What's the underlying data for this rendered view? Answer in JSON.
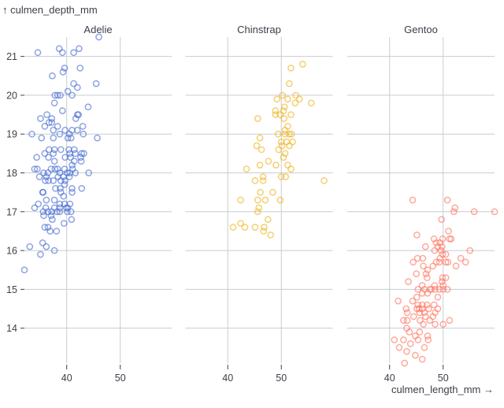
{
  "chart_data": {
    "type": "scatter",
    "xlabel": "culmen_length_mm →",
    "ylabel": "↑ culmen_depth_mm",
    "xlim": [
      32.1,
      59.6
    ],
    "ylim": [
      13.1,
      21.5
    ],
    "x_ticks": [
      "40",
      "50"
    ],
    "x_tick_values": [
      40,
      50
    ],
    "y_ticks": [
      "14",
      "15",
      "16",
      "17",
      "18",
      "19",
      "20",
      "21"
    ],
    "y_tick_values": [
      14,
      15,
      16,
      17,
      18,
      19,
      20,
      21
    ],
    "grid": true,
    "facet_by": "species",
    "facets": [
      {
        "name": "Adelie",
        "color": "#4269d0",
        "points": [
          [
            46.0,
            21.5
          ],
          [
            34.6,
            21.1
          ],
          [
            38.6,
            21.2
          ],
          [
            39.2,
            21.1
          ],
          [
            42.3,
            21.2
          ],
          [
            41.3,
            21.1
          ],
          [
            39.6,
            20.7
          ],
          [
            42.5,
            20.7
          ],
          [
            39.3,
            20.6
          ],
          [
            37.3,
            20.5
          ],
          [
            45.5,
            20.3
          ],
          [
            41.3,
            20.3
          ],
          [
            42.0,
            20.2
          ],
          [
            40.2,
            20.1
          ],
          [
            37.8,
            20.0
          ],
          [
            38.3,
            20.0
          ],
          [
            38.8,
            20.0
          ],
          [
            41.0,
            20.0
          ],
          [
            37.7,
            19.8
          ],
          [
            44.0,
            19.7
          ],
          [
            39.2,
            19.6
          ],
          [
            42.0,
            19.5
          ],
          [
            42.2,
            19.5
          ],
          [
            36.3,
            19.5
          ],
          [
            35.1,
            19.4
          ],
          [
            37.2,
            19.4
          ],
          [
            41.7,
            19.4
          ],
          [
            36.7,
            19.3
          ],
          [
            37.2,
            19.3
          ],
          [
            35.9,
            19.2
          ],
          [
            38.3,
            19.2
          ],
          [
            43.0,
            19.2
          ],
          [
            37.5,
            19.1
          ],
          [
            39.7,
            19.1
          ],
          [
            41.0,
            19.1
          ],
          [
            42.0,
            19.1
          ],
          [
            33.5,
            19.0
          ],
          [
            38.7,
            19.0
          ],
          [
            40.5,
            19.0
          ],
          [
            43.1,
            19.0
          ],
          [
            35.3,
            18.9
          ],
          [
            37.5,
            18.9
          ],
          [
            45.7,
            18.9
          ],
          [
            40.2,
            18.9
          ],
          [
            40.8,
            18.9
          ],
          [
            36.7,
            18.6
          ],
          [
            37.7,
            18.6
          ],
          [
            38.9,
            18.6
          ],
          [
            40.4,
            18.6
          ],
          [
            41.4,
            18.6
          ],
          [
            35.9,
            18.5
          ],
          [
            37.5,
            18.5
          ],
          [
            40.6,
            18.5
          ],
          [
            41.6,
            18.5
          ],
          [
            42.8,
            18.5
          ],
          [
            43.2,
            18.5
          ],
          [
            34.4,
            18.4
          ],
          [
            36.6,
            18.4
          ],
          [
            39.7,
            18.4
          ],
          [
            40.7,
            18.4
          ],
          [
            42.6,
            18.4
          ],
          [
            37.7,
            18.3
          ],
          [
            41.4,
            18.3
          ],
          [
            42.7,
            18.3
          ],
          [
            41.0,
            18.2
          ],
          [
            34.0,
            18.1
          ],
          [
            34.5,
            18.1
          ],
          [
            37.1,
            18.1
          ],
          [
            37.8,
            18.1
          ],
          [
            38.3,
            18.1
          ],
          [
            39.6,
            18.1
          ],
          [
            41.1,
            18.1
          ],
          [
            35.7,
            18.0
          ],
          [
            36.5,
            18.0
          ],
          [
            38.7,
            18.0
          ],
          [
            40.1,
            18.0
          ],
          [
            40.6,
            18.0
          ],
          [
            41.6,
            18.0
          ],
          [
            44.1,
            18.0
          ],
          [
            34.9,
            17.9
          ],
          [
            36.2,
            17.9
          ],
          [
            38.4,
            17.9
          ],
          [
            39.4,
            17.9
          ],
          [
            40.5,
            17.9
          ],
          [
            36.0,
            17.8
          ],
          [
            36.6,
            17.8
          ],
          [
            37.5,
            17.8
          ],
          [
            38.9,
            17.8
          ],
          [
            39.7,
            17.8
          ],
          [
            39.6,
            17.7
          ],
          [
            37.9,
            17.6
          ],
          [
            38.8,
            17.6
          ],
          [
            41.0,
            17.6
          ],
          [
            42.8,
            17.6
          ],
          [
            35.5,
            17.5
          ],
          [
            35.6,
            17.5
          ],
          [
            38.9,
            17.5
          ],
          [
            41.0,
            17.5
          ],
          [
            39.4,
            17.4
          ],
          [
            36.2,
            17.3
          ],
          [
            37.7,
            17.3
          ],
          [
            34.7,
            17.2
          ],
          [
            38.7,
            17.2
          ],
          [
            39.6,
            17.2
          ],
          [
            40.6,
            17.2
          ],
          [
            34.0,
            17.1
          ],
          [
            36.1,
            17.1
          ],
          [
            37.7,
            17.1
          ],
          [
            38.7,
            17.1
          ],
          [
            39.9,
            17.1
          ],
          [
            40.2,
            17.1
          ],
          [
            35.6,
            17.0
          ],
          [
            36.5,
            17.0
          ],
          [
            37.2,
            17.0
          ],
          [
            38.2,
            17.0
          ],
          [
            38.7,
            17.0
          ],
          [
            40.1,
            17.0
          ],
          [
            40.8,
            17.0
          ],
          [
            35.7,
            16.9
          ],
          [
            37.1,
            16.9
          ],
          [
            37.3,
            16.8
          ],
          [
            40.9,
            16.8
          ],
          [
            39.5,
            16.7
          ],
          [
            35.9,
            16.6
          ],
          [
            36.5,
            16.6
          ],
          [
            36.9,
            16.5
          ],
          [
            38.1,
            16.5
          ],
          [
            35.5,
            16.2
          ],
          [
            33.1,
            16.1
          ],
          [
            36.2,
            16.1
          ],
          [
            37.7,
            16.0
          ],
          [
            35.1,
            15.9
          ],
          [
            32.1,
            15.5
          ]
        ]
      },
      {
        "name": "Chinstrap",
        "color": "#efb118",
        "points": [
          [
            54.0,
            20.8
          ],
          [
            51.8,
            20.7
          ],
          [
            51.5,
            20.3
          ],
          [
            50.2,
            20.0
          ],
          [
            52.7,
            20.0
          ],
          [
            49.2,
            19.9
          ],
          [
            51.2,
            19.9
          ],
          [
            53.4,
            19.9
          ],
          [
            52.6,
            19.8
          ],
          [
            55.6,
            19.8
          ],
          [
            50.6,
            19.7
          ],
          [
            48.9,
            19.6
          ],
          [
            50.4,
            19.6
          ],
          [
            48.9,
            19.5
          ],
          [
            49.8,
            19.5
          ],
          [
            51.8,
            19.5
          ],
          [
            45.6,
            19.4
          ],
          [
            50.5,
            19.4
          ],
          [
            51.2,
            19.2
          ],
          [
            50.7,
            19.1
          ],
          [
            49.4,
            19.0
          ],
          [
            50.7,
            19.0
          ],
          [
            51.5,
            19.0
          ],
          [
            51.9,
            19.0
          ],
          [
            46.0,
            18.9
          ],
          [
            50.0,
            18.8
          ],
          [
            51.0,
            18.8
          ],
          [
            52.1,
            18.8
          ],
          [
            45.4,
            18.7
          ],
          [
            50.1,
            18.7
          ],
          [
            51.5,
            18.7
          ],
          [
            46.3,
            18.6
          ],
          [
            49.5,
            18.6
          ],
          [
            50.7,
            18.5
          ],
          [
            50.4,
            18.4
          ],
          [
            47.6,
            18.3
          ],
          [
            46.0,
            18.2
          ],
          [
            49.0,
            18.2
          ],
          [
            51.2,
            18.2
          ],
          [
            51.8,
            18.1
          ],
          [
            43.5,
            18.1
          ],
          [
            46.6,
            17.9
          ],
          [
            50.0,
            17.9
          ],
          [
            50.8,
            17.9
          ],
          [
            46.6,
            17.8
          ],
          [
            45.1,
            17.8
          ],
          [
            58.0,
            17.8
          ],
          [
            46.1,
            17.5
          ],
          [
            48.4,
            17.5
          ],
          [
            42.4,
            17.3
          ],
          [
            45.6,
            17.3
          ],
          [
            47.0,
            17.3
          ],
          [
            49.8,
            17.3
          ],
          [
            45.8,
            17.1
          ],
          [
            45.6,
            17.0
          ],
          [
            47.5,
            16.8
          ],
          [
            42.4,
            16.7
          ],
          [
            41.0,
            16.6
          ],
          [
            43.2,
            16.6
          ],
          [
            45.1,
            16.6
          ],
          [
            46.8,
            16.6
          ],
          [
            46.7,
            16.5
          ],
          [
            48.0,
            16.4
          ]
        ]
      },
      {
        "name": "Gentoo",
        "color": "#ff725c",
        "points": [
          [
            44.3,
            17.3
          ],
          [
            50.8,
            17.3
          ],
          [
            52.2,
            17.1
          ],
          [
            52.0,
            17.0
          ],
          [
            55.8,
            17.0
          ],
          [
            59.6,
            17.0
          ],
          [
            49.7,
            16.8
          ],
          [
            45.1,
            16.4
          ],
          [
            51.0,
            16.5
          ],
          [
            48.3,
            16.3
          ],
          [
            49.9,
            16.3
          ],
          [
            51.2,
            16.3
          ],
          [
            51.5,
            16.3
          ],
          [
            48.7,
            16.2
          ],
          [
            49.4,
            16.2
          ],
          [
            46.7,
            16.1
          ],
          [
            49.0,
            16.1
          ],
          [
            49.8,
            16.1
          ],
          [
            48.4,
            16.0
          ],
          [
            49.6,
            16.0
          ],
          [
            55.0,
            16.0
          ],
          [
            49.9,
            15.9
          ],
          [
            50.5,
            15.9
          ],
          [
            45.2,
            15.8
          ],
          [
            46.2,
            15.8
          ],
          [
            49.4,
            15.8
          ],
          [
            53.3,
            15.8
          ],
          [
            44.4,
            15.7
          ],
          [
            48.7,
            15.7
          ],
          [
            49.3,
            15.7
          ],
          [
            50.5,
            15.7
          ],
          [
            50.9,
            15.7
          ],
          [
            54.2,
            15.7
          ],
          [
            46.3,
            15.6
          ],
          [
            48.1,
            15.6
          ],
          [
            52.4,
            15.6
          ],
          [
            47.1,
            15.5
          ],
          [
            45.0,
            15.4
          ],
          [
            46.8,
            15.4
          ],
          [
            47.0,
            15.3
          ],
          [
            49.9,
            15.3
          ],
          [
            50.5,
            15.3
          ],
          [
            43.5,
            15.2
          ],
          [
            49.8,
            15.2
          ],
          [
            46.1,
            15.1
          ],
          [
            48.4,
            15.1
          ],
          [
            50.0,
            15.1
          ],
          [
            45.3,
            15.0
          ],
          [
            46.5,
            15.0
          ],
          [
            47.5,
            15.0
          ],
          [
            47.8,
            15.0
          ],
          [
            48.5,
            15.0
          ],
          [
            49.3,
            15.0
          ],
          [
            50.0,
            15.0
          ],
          [
            50.8,
            15.0
          ],
          [
            46.1,
            14.9
          ],
          [
            47.1,
            14.9
          ],
          [
            45.1,
            14.8
          ],
          [
            49.0,
            14.8
          ],
          [
            41.6,
            14.7
          ],
          [
            44.3,
            14.7
          ],
          [
            45.3,
            14.6
          ],
          [
            46.1,
            14.6
          ],
          [
            47.0,
            14.6
          ],
          [
            48.3,
            14.6
          ],
          [
            43.1,
            14.5
          ],
          [
            45.1,
            14.5
          ],
          [
            45.5,
            14.5
          ],
          [
            46.1,
            14.5
          ],
          [
            47.3,
            14.5
          ],
          [
            49.0,
            14.5
          ],
          [
            43.3,
            14.4
          ],
          [
            45.6,
            14.4
          ],
          [
            46.5,
            14.4
          ],
          [
            48.5,
            14.4
          ],
          [
            44.5,
            14.3
          ],
          [
            46.7,
            14.3
          ],
          [
            48.1,
            14.3
          ],
          [
            42.6,
            14.2
          ],
          [
            43.3,
            14.2
          ],
          [
            45.7,
            14.2
          ],
          [
            47.5,
            14.2
          ],
          [
            51.2,
            14.2
          ],
          [
            46.3,
            14.1
          ],
          [
            48.5,
            14.1
          ],
          [
            50.0,
            14.1
          ],
          [
            43.2,
            14.0
          ],
          [
            43.7,
            13.9
          ],
          [
            45.6,
            13.9
          ],
          [
            44.8,
            13.8
          ],
          [
            47.1,
            13.8
          ],
          [
            40.9,
            13.7
          ],
          [
            42.6,
            13.7
          ],
          [
            45.3,
            13.7
          ],
          [
            47.2,
            13.7
          ],
          [
            43.9,
            13.6
          ],
          [
            41.8,
            13.5
          ],
          [
            46.5,
            13.5
          ],
          [
            43.2,
            13.4
          ],
          [
            44.8,
            13.3
          ],
          [
            46.1,
            13.2
          ],
          [
            42.8,
            13.1
          ]
        ]
      }
    ]
  }
}
